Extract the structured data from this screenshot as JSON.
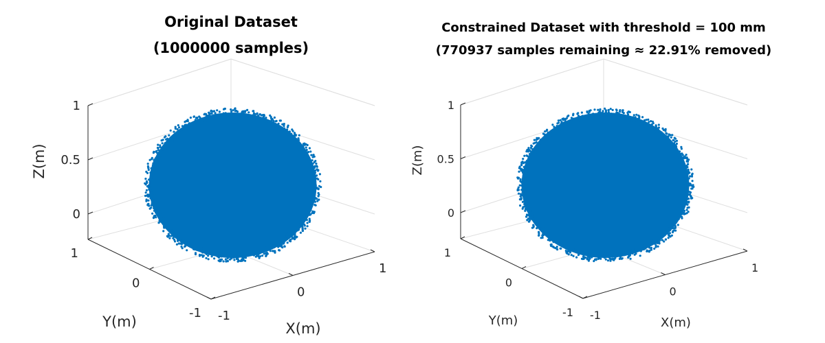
{
  "chart_data": [
    {
      "type": "scatter",
      "title_line1": "Original Dataset",
      "title_line2": "(1000000 samples)",
      "xlabel": "X(m)",
      "ylabel": "Y(m)",
      "zlabel": "Z(m)",
      "xticks": [
        "-1",
        "0",
        "1"
      ],
      "yticks": [
        "-1",
        "0",
        "1"
      ],
      "zticks": [
        "0",
        "0.5",
        "1"
      ],
      "xlim": [
        -1,
        1
      ],
      "ylim": [
        -1,
        1
      ],
      "zlim": [
        -0.25,
        1
      ],
      "grid": true,
      "series": [
        {
          "shape": "sphere",
          "center": [
            0,
            0,
            0
          ],
          "radius": 1,
          "color": "#0072BD",
          "point_count": 1000000
        }
      ]
    },
    {
      "type": "scatter",
      "title_line1": "Constrained Dataset with threshold = 100 mm",
      "title_line2": "(770937 samples remaining ≈ 22.91% removed)",
      "xlabel": "X(m)",
      "ylabel": "Y(m)",
      "zlabel": "Z(m)",
      "xticks": [
        "-1",
        "0",
        "1"
      ],
      "yticks": [
        "-1",
        "0",
        "1"
      ],
      "zticks": [
        "0",
        "0.5",
        "1"
      ],
      "xlim": [
        -1,
        1
      ],
      "ylim": [
        -1,
        1
      ],
      "zlim": [
        -0.25,
        1
      ],
      "grid": true,
      "series": [
        {
          "shape": "sphere",
          "center": [
            0,
            0,
            0
          ],
          "radius": 1,
          "color": "#0072BD",
          "point_count": 770937
        }
      ]
    }
  ]
}
